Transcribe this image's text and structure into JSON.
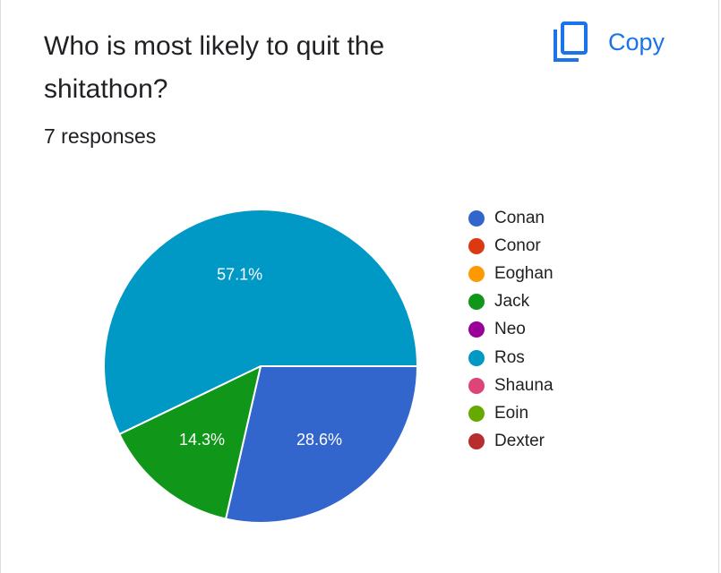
{
  "question": {
    "title": "Who is most likely to quit the shitathon?",
    "responses": "7 responses"
  },
  "toolbar": {
    "copy_label": "Copy",
    "copy_icon": "copy-icon",
    "accent": "#1a73e8"
  },
  "chart_data": {
    "type": "pie",
    "start_angle_deg": 90,
    "direction": "clockwise",
    "legend_position": "right",
    "slices": [
      {
        "name": "Conan",
        "value": 2,
        "percent": 28.6,
        "label": "28.6%",
        "color": "#3366cc"
      },
      {
        "name": "Conor",
        "value": 0,
        "percent": 0,
        "label": "",
        "color": "#dc3912"
      },
      {
        "name": "Eoghan",
        "value": 0,
        "percent": 0,
        "label": "",
        "color": "#ff9900"
      },
      {
        "name": "Jack",
        "value": 1,
        "percent": 14.3,
        "label": "14.3%",
        "color": "#109618"
      },
      {
        "name": "Neo",
        "value": 0,
        "percent": 0,
        "label": "",
        "color": "#990099"
      },
      {
        "name": "Ros",
        "value": 4,
        "percent": 57.1,
        "label": "57.1%",
        "color": "#0099c6"
      },
      {
        "name": "Shauna",
        "value": 0,
        "percent": 0,
        "label": "",
        "color": "#dd4477"
      },
      {
        "name": "Eoin",
        "value": 0,
        "percent": 0,
        "label": "",
        "color": "#66aa00"
      },
      {
        "name": "Dexter",
        "value": 0,
        "percent": 0,
        "label": "",
        "color": "#b82e2e"
      }
    ]
  }
}
